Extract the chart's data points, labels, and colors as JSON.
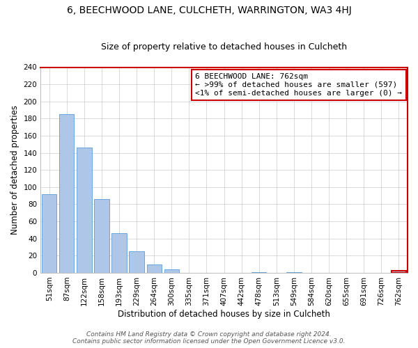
{
  "title": "6, BEECHWOOD LANE, CULCHETH, WARRINGTON, WA3 4HJ",
  "subtitle": "Size of property relative to detached houses in Culcheth",
  "xlabel": "Distribution of detached houses by size in Culcheth",
  "ylabel": "Number of detached properties",
  "categories": [
    "51sqm",
    "87sqm",
    "122sqm",
    "158sqm",
    "193sqm",
    "229sqm",
    "264sqm",
    "300sqm",
    "335sqm",
    "371sqm",
    "407sqm",
    "442sqm",
    "478sqm",
    "513sqm",
    "549sqm",
    "584sqm",
    "620sqm",
    "655sqm",
    "691sqm",
    "726sqm",
    "762sqm"
  ],
  "values": [
    92,
    185,
    146,
    86,
    46,
    25,
    10,
    4,
    0,
    0,
    0,
    0,
    1,
    0,
    1,
    0,
    0,
    0,
    0,
    0,
    2
  ],
  "bar_color": "#aec6e8",
  "bar_edge_color": "#5b9bd5",
  "highlight_bar_index": 20,
  "highlight_bar_edge_color": "#cc0000",
  "annotation_box_text_line1": "6 BEECHWOOD LANE: 762sqm",
  "annotation_box_text_line2": "← >99% of detached houses are smaller (597)",
  "annotation_box_text_line3": "<1% of semi-detached houses are larger (0) →",
  "annotation_box_edge_color": "#cc0000",
  "annotation_box_face_color": "#ffffff",
  "right_spine_color": "#cc0000",
  "ylim": [
    0,
    240
  ],
  "yticks": [
    0,
    20,
    40,
    60,
    80,
    100,
    120,
    140,
    160,
    180,
    200,
    220,
    240
  ],
  "footer_line1": "Contains HM Land Registry data © Crown copyright and database right 2024.",
  "footer_line2": "Contains public sector information licensed under the Open Government Licence v3.0.",
  "background_color": "#ffffff",
  "grid_color": "#cccccc",
  "title_fontsize": 10,
  "subtitle_fontsize": 9,
  "axis_label_fontsize": 8.5,
  "tick_fontsize": 7.5,
  "annotation_fontsize": 8,
  "footer_fontsize": 6.5
}
